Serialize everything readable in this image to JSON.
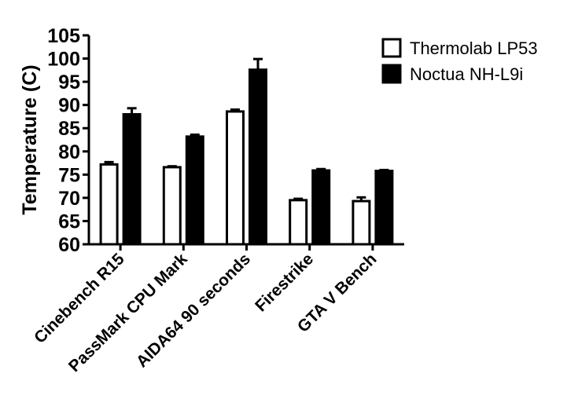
{
  "chart_data": {
    "type": "bar",
    "title": "",
    "xlabel": "",
    "ylabel": "Temperature (C)",
    "ylim": [
      60,
      105
    ],
    "yticks": [
      60,
      65,
      70,
      75,
      80,
      85,
      90,
      95,
      100,
      105
    ],
    "grid": false,
    "legend_position": "top-right",
    "categories": [
      "Cinebench R15",
      "PassMark CPU Mark",
      "AIDA64 90 seconds",
      "Firestrike",
      "GTA V Bench"
    ],
    "series": [
      {
        "name": "Thermolab LP53",
        "fill": "#ffffff",
        "stroke": "#000000",
        "values": [
          77.2,
          76.6,
          88.6,
          69.5,
          69.3
        ],
        "errors": [
          0.5,
          0.2,
          0.4,
          0.3,
          0.8
        ]
      },
      {
        "name": "Noctua NH-L9i",
        "fill": "#000000",
        "stroke": "#000000",
        "values": [
          88.0,
          83.2,
          97.6,
          75.9,
          75.8
        ],
        "errors": [
          1.3,
          0.4,
          2.3,
          0.3,
          0.2
        ]
      }
    ]
  }
}
